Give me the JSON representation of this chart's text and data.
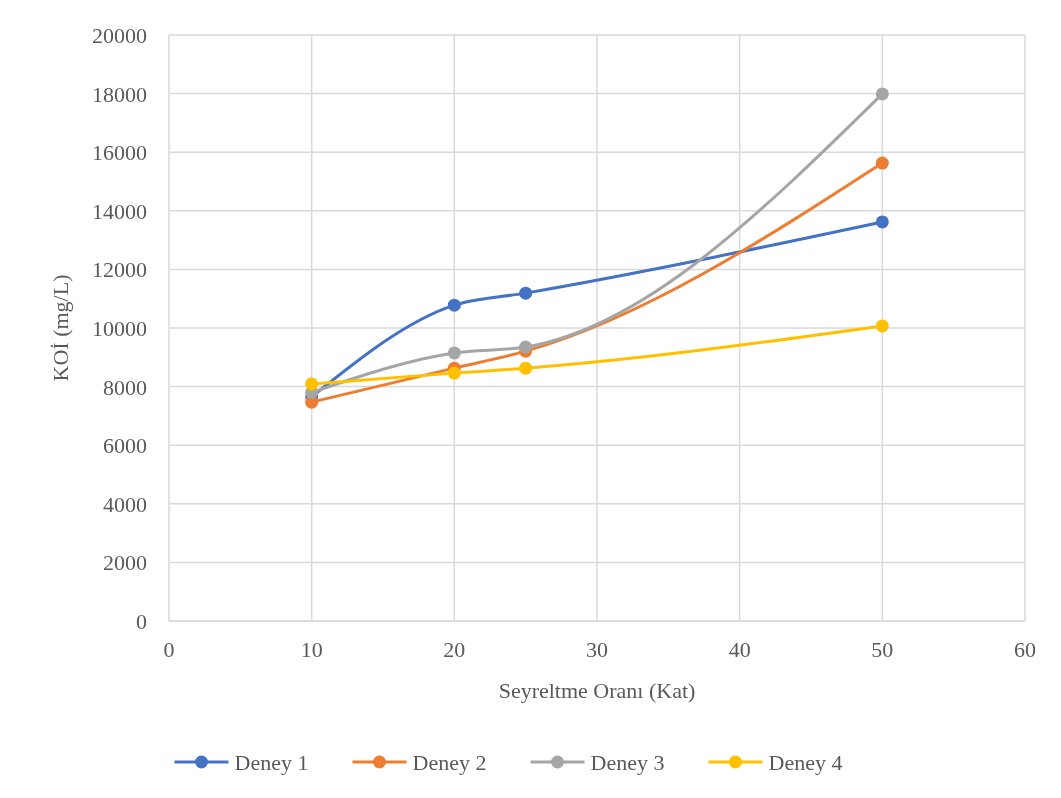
{
  "chart_data": {
    "type": "line",
    "xlabel": "Seyreltme Oranı (Kat)",
    "ylabel": "KOİ (mg/L)",
    "x": [
      10,
      20,
      25,
      50
    ],
    "series": [
      {
        "name": "Deney 1",
        "color": "#4472c4",
        "values": [
          7650,
          10780,
          11190,
          13620
        ]
      },
      {
        "name": "Deney 2",
        "color": "#ed7d31",
        "values": [
          7470,
          8630,
          9210,
          15630
        ]
      },
      {
        "name": "Deney 3",
        "color": "#a5a5a5",
        "values": [
          7800,
          9150,
          9350,
          17990
        ]
      },
      {
        "name": "Deney 4",
        "color": "#ffc000",
        "values": [
          8090,
          8460,
          8630,
          10070
        ]
      }
    ],
    "xlim": [
      0,
      60
    ],
    "xticks": [
      0,
      10,
      20,
      30,
      40,
      50,
      60
    ],
    "ylim": [
      0,
      20000
    ],
    "yticks": [
      0,
      2000,
      4000,
      6000,
      8000,
      10000,
      12000,
      14000,
      16000,
      18000,
      20000
    ],
    "grid": true,
    "legend": "bottom",
    "marker": "circle",
    "line_style": "solid"
  }
}
